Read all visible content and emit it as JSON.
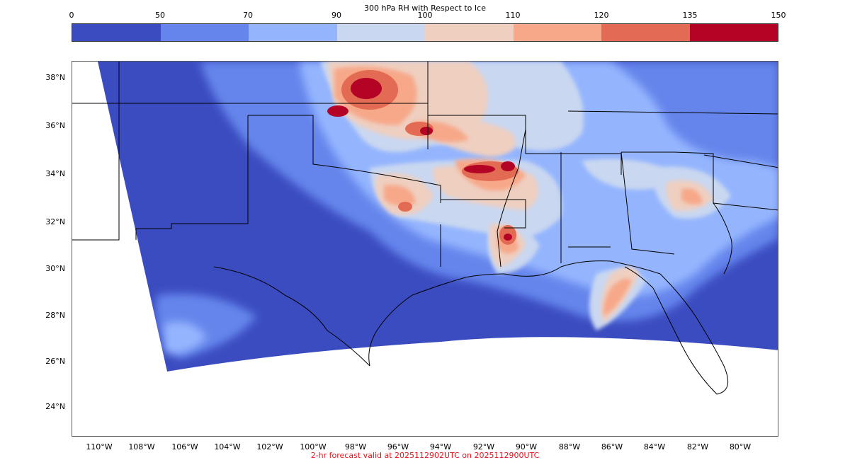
{
  "colorbar": {
    "title": "300 hPa RH with Respect to Ice",
    "tick_labels": [
      "0",
      "50",
      "70",
      "90",
      "100",
      "110",
      "120",
      "135",
      "150"
    ],
    "bins": [
      {
        "from": 0,
        "to": 50,
        "color": "#3b4cc0"
      },
      {
        "from": 50,
        "to": 70,
        "color": "#6585ec"
      },
      {
        "from": 70,
        "to": 90,
        "color": "#94b5fe"
      },
      {
        "from": 90,
        "to": 100,
        "color": "#c9d7f0"
      },
      {
        "from": 100,
        "to": 110,
        "color": "#efcfc0"
      },
      {
        "from": 110,
        "to": 120,
        "color": "#f7a889"
      },
      {
        "from": 120,
        "to": 135,
        "color": "#e36a53"
      },
      {
        "from": 135,
        "to": 150,
        "color": "#b40426"
      }
    ]
  },
  "map": {
    "latitude_labels": [
      "38°N",
      "36°N",
      "34°N",
      "32°N",
      "30°N",
      "28°N",
      "26°N",
      "24°N"
    ],
    "longitude_labels": [
      "110°W",
      "108°W",
      "106°W",
      "104°W",
      "102°W",
      "100°W",
      "98°W",
      "96°W",
      "94°W",
      "92°W",
      "90°W",
      "88°W",
      "86°W",
      "84°W",
      "82°W",
      "80°W"
    ]
  },
  "caption": "2-hr forecast valid at 2025112902UTC on 2025112900UTC"
}
